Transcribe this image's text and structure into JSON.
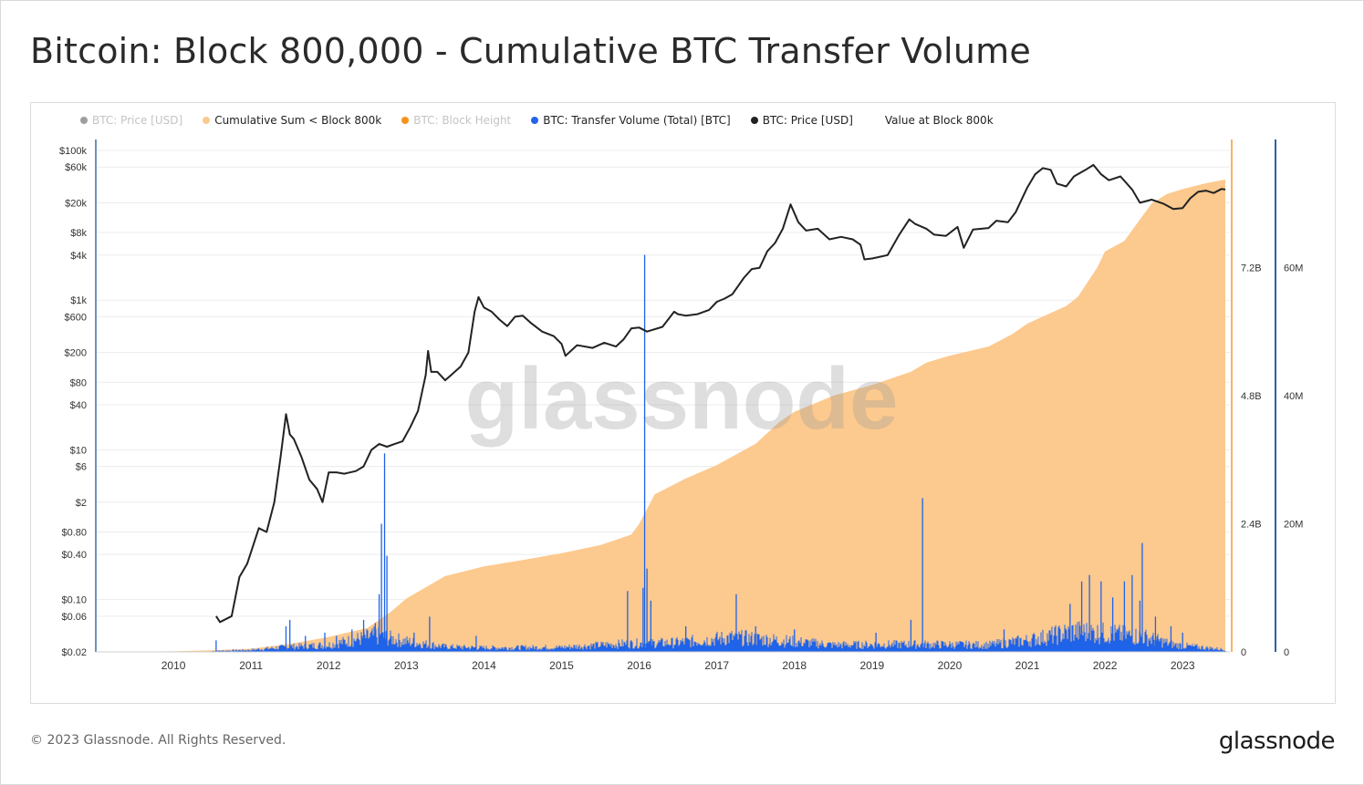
{
  "page": {
    "title": "Bitcoin: Block 800,000 - Cumulative BTC Transfer Volume",
    "copyright": "© 2023 Glassnode. All Rights Reserved.",
    "logo": "glassnode",
    "watermark": "glassnode"
  },
  "legend": [
    {
      "label": "BTC: Price [USD]",
      "color": "#9e9e9e",
      "muted": true
    },
    {
      "label": "Cumulative Sum < Block 800k",
      "color": "#fac98f",
      "muted": false
    },
    {
      "label": "BTC: Block Height",
      "color": "#f7931a",
      "muted": true
    },
    {
      "label": "BTC: Transfer Volume (Total) [BTC]",
      "color": "#2563eb",
      "muted": false
    },
    {
      "label": "BTC: Price [USD]",
      "color": "#222222",
      "muted": false
    },
    {
      "label": "Value at Block 800k",
      "color": "",
      "muted": false
    }
  ],
  "colors": {
    "cumulative": "#fcc98e",
    "cumulative_axis": "#f7b26a",
    "volume": "#1f63e8",
    "volume_axis": "#2c5fa8",
    "price": "#222222",
    "grid": "#ececec"
  },
  "chart_data": {
    "type": "area",
    "x_ticks": [
      "2010",
      "2011",
      "2012",
      "2013",
      "2014",
      "2015",
      "2016",
      "2017",
      "2018",
      "2019",
      "2020",
      "2021",
      "2022",
      "2023"
    ],
    "x_range": [
      2009.0,
      2023.55
    ],
    "price_axis": {
      "scale": "log",
      "range": [
        0.02,
        140000
      ],
      "ticks": [
        {
          "value": 100000,
          "label": "$100k"
        },
        {
          "value": 60000,
          "label": "$60k"
        },
        {
          "value": 20000,
          "label": "$20k"
        },
        {
          "value": 8000,
          "label": "$8k"
        },
        {
          "value": 4000,
          "label": "$4k"
        },
        {
          "value": 1000,
          "label": "$1k"
        },
        {
          "value": 600,
          "label": "$600"
        },
        {
          "value": 200,
          "label": "$200"
        },
        {
          "value": 80,
          "label": "$80"
        },
        {
          "value": 40,
          "label": "$40"
        },
        {
          "value": 10,
          "label": "$10"
        },
        {
          "value": 6,
          "label": "$6"
        },
        {
          "value": 2,
          "label": "$2"
        },
        {
          "value": 0.8,
          "label": "$0.80"
        },
        {
          "value": 0.4,
          "label": "$0.40"
        },
        {
          "value": 0.1,
          "label": "$0.10"
        },
        {
          "value": 0.06,
          "label": "$0.06"
        },
        {
          "value": 0.02,
          "label": "$0.02"
        }
      ]
    },
    "cumulative_axis": {
      "range": [
        0,
        9600000000
      ],
      "ticks": [
        {
          "value": 0,
          "label": "0"
        },
        {
          "value": 2400000000,
          "label": "2.4B"
        },
        {
          "value": 4800000000,
          "label": "4.8B"
        },
        {
          "value": 7200000000,
          "label": "7.2B"
        }
      ]
    },
    "volume_axis": {
      "range": [
        0,
        80000000
      ],
      "ticks": [
        {
          "value": 0,
          "label": "0"
        },
        {
          "value": 20000000,
          "label": "20M"
        },
        {
          "value": 40000000,
          "label": "40M"
        },
        {
          "value": 60000000,
          "label": "60M"
        }
      ]
    },
    "series": [
      {
        "name": "BTC: Price [USD]",
        "points": [
          [
            2010.55,
            0.06
          ],
          [
            2010.6,
            0.05
          ],
          [
            2010.75,
            0.06
          ],
          [
            2010.85,
            0.2
          ],
          [
            2010.95,
            0.3
          ],
          [
            2011.1,
            0.9
          ],
          [
            2011.2,
            0.8
          ],
          [
            2011.3,
            2
          ],
          [
            2011.38,
            8
          ],
          [
            2011.45,
            30
          ],
          [
            2011.5,
            16
          ],
          [
            2011.55,
            14
          ],
          [
            2011.65,
            8
          ],
          [
            2011.75,
            4
          ],
          [
            2011.85,
            3
          ],
          [
            2011.92,
            2
          ],
          [
            2012.0,
            5
          ],
          [
            2012.1,
            5
          ],
          [
            2012.2,
            4.8
          ],
          [
            2012.35,
            5.2
          ],
          [
            2012.45,
            6
          ],
          [
            2012.55,
            10
          ],
          [
            2012.65,
            12
          ],
          [
            2012.75,
            11
          ],
          [
            2012.85,
            12
          ],
          [
            2012.95,
            13
          ],
          [
            2013.05,
            20
          ],
          [
            2013.15,
            33
          ],
          [
            2013.25,
            100
          ],
          [
            2013.28,
            210
          ],
          [
            2013.32,
            110
          ],
          [
            2013.4,
            110
          ],
          [
            2013.5,
            85
          ],
          [
            2013.6,
            105
          ],
          [
            2013.7,
            130
          ],
          [
            2013.8,
            200
          ],
          [
            2013.88,
            700
          ],
          [
            2013.93,
            1100
          ],
          [
            2014.0,
            800
          ],
          [
            2014.1,
            700
          ],
          [
            2014.2,
            550
          ],
          [
            2014.3,
            450
          ],
          [
            2014.4,
            600
          ],
          [
            2014.5,
            620
          ],
          [
            2014.6,
            500
          ],
          [
            2014.75,
            380
          ],
          [
            2014.9,
            330
          ],
          [
            2015.0,
            260
          ],
          [
            2015.05,
            180
          ],
          [
            2015.2,
            250
          ],
          [
            2015.4,
            230
          ],
          [
            2015.55,
            270
          ],
          [
            2015.7,
            240
          ],
          [
            2015.8,
            300
          ],
          [
            2015.9,
            420
          ],
          [
            2016.0,
            430
          ],
          [
            2016.1,
            380
          ],
          [
            2016.3,
            440
          ],
          [
            2016.45,
            700
          ],
          [
            2016.5,
            650
          ],
          [
            2016.6,
            620
          ],
          [
            2016.75,
            650
          ],
          [
            2016.9,
            740
          ],
          [
            2017.0,
            950
          ],
          [
            2017.1,
            1050
          ],
          [
            2017.2,
            1200
          ],
          [
            2017.35,
            2000
          ],
          [
            2017.45,
            2600
          ],
          [
            2017.55,
            2700
          ],
          [
            2017.65,
            4500
          ],
          [
            2017.75,
            5800
          ],
          [
            2017.85,
            9000
          ],
          [
            2017.95,
            19000
          ],
          [
            2018.05,
            11000
          ],
          [
            2018.15,
            8500
          ],
          [
            2018.3,
            9000
          ],
          [
            2018.45,
            6500
          ],
          [
            2018.6,
            7000
          ],
          [
            2018.75,
            6500
          ],
          [
            2018.85,
            5500
          ],
          [
            2018.9,
            3500
          ],
          [
            2019.0,
            3600
          ],
          [
            2019.2,
            4000
          ],
          [
            2019.35,
            7500
          ],
          [
            2019.48,
            12000
          ],
          [
            2019.55,
            10500
          ],
          [
            2019.7,
            9000
          ],
          [
            2019.8,
            7500
          ],
          [
            2019.95,
            7200
          ],
          [
            2020.1,
            9500
          ],
          [
            2020.18,
            5000
          ],
          [
            2020.3,
            8800
          ],
          [
            2020.5,
            9200
          ],
          [
            2020.6,
            11500
          ],
          [
            2020.75,
            11000
          ],
          [
            2020.85,
            15000
          ],
          [
            2020.95,
            25000
          ],
          [
            2021.0,
            32000
          ],
          [
            2021.1,
            48000
          ],
          [
            2021.2,
            58000
          ],
          [
            2021.3,
            55000
          ],
          [
            2021.38,
            36000
          ],
          [
            2021.5,
            33000
          ],
          [
            2021.6,
            45000
          ],
          [
            2021.75,
            55000
          ],
          [
            2021.85,
            64000
          ],
          [
            2021.95,
            48000
          ],
          [
            2022.05,
            40000
          ],
          [
            2022.2,
            45000
          ],
          [
            2022.35,
            30000
          ],
          [
            2022.45,
            20000
          ],
          [
            2022.6,
            22000
          ],
          [
            2022.75,
            19500
          ],
          [
            2022.88,
            16500
          ],
          [
            2023.0,
            17000
          ],
          [
            2023.1,
            23000
          ],
          [
            2023.2,
            28000
          ],
          [
            2023.3,
            29000
          ],
          [
            2023.4,
            27000
          ],
          [
            2023.5,
            30500
          ],
          [
            2023.55,
            30000
          ]
        ]
      },
      {
        "name": "Cumulative Sum < Block 800k",
        "points": [
          [
            2009.0,
            0
          ],
          [
            2010.0,
            10000000
          ],
          [
            2010.5,
            30000000
          ],
          [
            2011.0,
            60000000
          ],
          [
            2011.5,
            150000000
          ],
          [
            2012.0,
            280000000
          ],
          [
            2012.5,
            450000000
          ],
          [
            2012.8,
            750000000
          ],
          [
            2013.0,
            1000000000
          ],
          [
            2013.5,
            1420000000
          ],
          [
            2014.0,
            1600000000
          ],
          [
            2014.5,
            1720000000
          ],
          [
            2015.0,
            1850000000
          ],
          [
            2015.5,
            2000000000
          ],
          [
            2015.9,
            2200000000
          ],
          [
            2016.0,
            2400000000
          ],
          [
            2016.2,
            2950000000
          ],
          [
            2016.6,
            3250000000
          ],
          [
            2017.0,
            3500000000
          ],
          [
            2017.5,
            3900000000
          ],
          [
            2017.8,
            4300000000
          ],
          [
            2018.0,
            4500000000
          ],
          [
            2018.5,
            4800000000
          ],
          [
            2019.0,
            5000000000
          ],
          [
            2019.5,
            5250000000
          ],
          [
            2019.7,
            5420000000
          ],
          [
            2020.0,
            5550000000
          ],
          [
            2020.5,
            5720000000
          ],
          [
            2020.8,
            5950000000
          ],
          [
            2021.0,
            6150000000
          ],
          [
            2021.5,
            6480000000
          ],
          [
            2021.65,
            6650000000
          ],
          [
            2021.9,
            7200000000
          ],
          [
            2022.0,
            7500000000
          ],
          [
            2022.25,
            7700000000
          ],
          [
            2022.45,
            8100000000
          ],
          [
            2022.6,
            8400000000
          ],
          [
            2022.8,
            8580000000
          ],
          [
            2023.0,
            8670000000
          ],
          [
            2023.3,
            8780000000
          ],
          [
            2023.55,
            8850000000
          ]
        ]
      },
      {
        "name": "BTC: Transfer Volume (Total) [BTC]",
        "spikes": [
          [
            2010.55,
            1800000
          ],
          [
            2011.45,
            4000000
          ],
          [
            2011.5,
            5000000
          ],
          [
            2011.7,
            2500000
          ],
          [
            2011.95,
            3000000
          ],
          [
            2012.1,
            2500000
          ],
          [
            2012.3,
            3500000
          ],
          [
            2012.45,
            5000000
          ],
          [
            2012.6,
            4500000
          ],
          [
            2012.65,
            9000000
          ],
          [
            2012.68,
            20000000
          ],
          [
            2012.72,
            31000000
          ],
          [
            2012.75,
            15000000
          ],
          [
            2013.1,
            3000000
          ],
          [
            2013.3,
            5500000
          ],
          [
            2013.9,
            2500000
          ],
          [
            2015.85,
            9500000
          ],
          [
            2016.05,
            10000000
          ],
          [
            2016.07,
            62000000
          ],
          [
            2016.1,
            13000000
          ],
          [
            2016.15,
            8000000
          ],
          [
            2016.6,
            4000000
          ],
          [
            2017.25,
            9000000
          ],
          [
            2017.5,
            4000000
          ],
          [
            2018.0,
            3500000
          ],
          [
            2019.05,
            3000000
          ],
          [
            2019.5,
            5000000
          ],
          [
            2019.65,
            24000000
          ],
          [
            2020.7,
            3500000
          ],
          [
            2021.55,
            7500000
          ],
          [
            2021.7,
            11000000
          ],
          [
            2021.8,
            12000000
          ],
          [
            2021.95,
            11000000
          ],
          [
            2022.1,
            8500000
          ],
          [
            2022.25,
            11000000
          ],
          [
            2022.35,
            12000000
          ],
          [
            2022.45,
            8000000
          ],
          [
            2022.48,
            17000000
          ],
          [
            2022.65,
            5500000
          ],
          [
            2022.85,
            4000000
          ],
          [
            2023.0,
            3000000
          ]
        ],
        "baseline": [
          [
            2009.0,
            0
          ],
          [
            2010.5,
            150000
          ],
          [
            2011.0,
            350000
          ],
          [
            2011.5,
            900000
          ],
          [
            2012.0,
            1200000
          ],
          [
            2012.6,
            2800000
          ],
          [
            2013.0,
            1800000
          ],
          [
            2013.5,
            900000
          ],
          [
            2014.0,
            700000
          ],
          [
            2015.0,
            800000
          ],
          [
            2015.8,
            1400000
          ],
          [
            2016.5,
            1600000
          ],
          [
            2017.2,
            2500000
          ],
          [
            2017.8,
            2000000
          ],
          [
            2018.5,
            1200000
          ],
          [
            2019.5,
            1300000
          ],
          [
            2020.5,
            1200000
          ],
          [
            2021.0,
            2000000
          ],
          [
            2021.6,
            3500000
          ],
          [
            2022.0,
            3200000
          ],
          [
            2022.5,
            2600000
          ],
          [
            2022.9,
            1200000
          ],
          [
            2023.55,
            400000
          ]
        ]
      }
    ]
  }
}
